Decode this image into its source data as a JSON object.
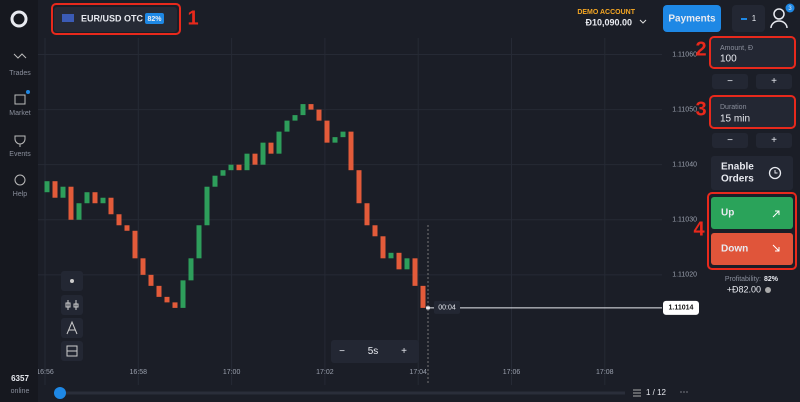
{
  "header": {
    "asset": "EUR/USD OTC",
    "payout": "82%",
    "account_label": "DEMO ACCOUNT",
    "balance": "Đ10,090.00",
    "payments": "Payments",
    "notifications": "1",
    "user_badge": "3"
  },
  "sidebar": {
    "items": [
      "Trades",
      "Market",
      "Events",
      "Help"
    ],
    "online_count": "6357",
    "online_label": "online"
  },
  "annotations": [
    "1",
    "2",
    "3",
    "4"
  ],
  "panel": {
    "amount_label": "Amount, Đ",
    "amount": "100",
    "amount_minus": "−",
    "amount_plus": "+",
    "duration_label": "Duration",
    "duration": "15 min",
    "duration_minus": "−",
    "duration_plus": "+",
    "enable_orders": [
      "Enable",
      "Orders"
    ],
    "up": "Up",
    "down": "Down",
    "profitability_label": "Profitability:",
    "profitability": "82%",
    "profit": "+Đ82.00"
  },
  "chart": {
    "ylim": [
      1.11,
      1.11063
    ],
    "yticks": [
      {
        "value": 1.1106,
        "label": "1.11060"
      },
      {
        "value": 1.1105,
        "label": "1.11050"
      },
      {
        "value": 1.1104,
        "label": "1.11040"
      },
      {
        "value": 1.1103,
        "label": "1.11030"
      },
      {
        "value": 1.1102,
        "label": "1.11020"
      }
    ],
    "xticks": [
      "16:56",
      "16:58",
      "17:00",
      "17:02",
      "17:04",
      "17:06",
      "17:08"
    ],
    "candles": {
      "open": 1.11035,
      "closes": [
        1.11037,
        1.11034,
        1.11036,
        1.1103,
        1.11033,
        1.11035,
        1.11033,
        1.11034,
        1.11031,
        1.11029,
        1.11028,
        1.11023,
        1.1102,
        1.11018,
        1.11016,
        1.11015,
        1.11014,
        1.11019,
        1.11023,
        1.11029,
        1.11036,
        1.11038,
        1.11039,
        1.1104,
        1.11039,
        1.11042,
        1.1104,
        1.11044,
        1.11042,
        1.11046,
        1.11048,
        1.11049,
        1.11051,
        1.1105,
        1.11048,
        1.11044,
        1.11045,
        1.11046,
        1.11039,
        1.11033,
        1.11029,
        1.11027,
        1.11023,
        1.11024,
        1.11021,
        1.11023,
        1.11018,
        1.11014
      ]
    },
    "current_price": 1.11014,
    "timer": "00:04",
    "timeframe": "5s",
    "zoom_out": "−",
    "zoom_in": "+",
    "page": "1 / 12"
  }
}
